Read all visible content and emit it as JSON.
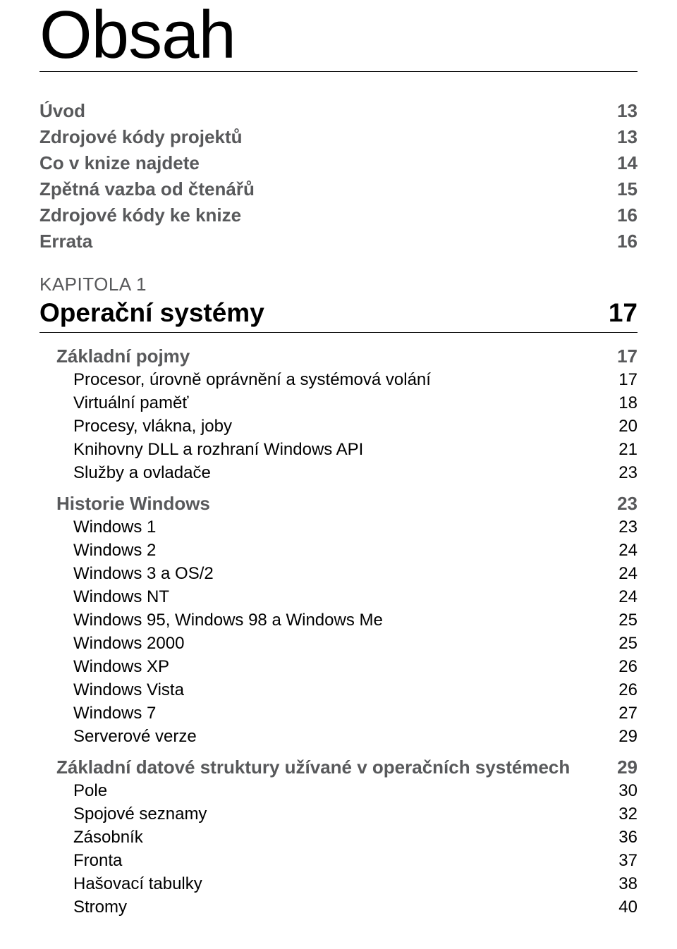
{
  "title": "Obsah",
  "intro": [
    {
      "label": "Úvod",
      "page": "13"
    },
    {
      "label": "Zdrojové kódy projektů",
      "page": "13"
    },
    {
      "label": "Co v knize najdete",
      "page": "14"
    },
    {
      "label": "Zpětná vazba od čtenářů",
      "page": "15"
    },
    {
      "label": "Zdrojové kódy ke knize",
      "page": "16"
    },
    {
      "label": "Errata",
      "page": "16"
    }
  ],
  "chapter": {
    "kapitola_label": "KAPITOLA 1",
    "title": "Operační systémy",
    "page": "17",
    "sections": [
      {
        "label": "Základní pojmy",
        "page": "17",
        "items": [
          {
            "label": "Procesor, úrovně oprávnění a systémová volání",
            "page": "17"
          },
          {
            "label": "Virtuální paměť",
            "page": "18"
          },
          {
            "label": "Procesy, vlákna, joby",
            "page": "20"
          },
          {
            "label": "Knihovny DLL a rozhraní Windows API",
            "page": "21"
          },
          {
            "label": "Služby a ovladače",
            "page": "23"
          }
        ]
      },
      {
        "label": "Historie Windows",
        "page": "23",
        "items": [
          {
            "label": "Windows 1",
            "page": "23"
          },
          {
            "label": "Windows 2",
            "page": "24"
          },
          {
            "label": "Windows 3 a OS/2",
            "page": "24"
          },
          {
            "label": "Windows NT",
            "page": "24"
          },
          {
            "label": "Windows 95, Windows 98 a Windows Me",
            "page": "25"
          },
          {
            "label": "Windows 2000",
            "page": "25"
          },
          {
            "label": "Windows XP",
            "page": "26"
          },
          {
            "label": "Windows Vista",
            "page": "26"
          },
          {
            "label": "Windows 7",
            "page": "27"
          },
          {
            "label": "Serverové verze",
            "page": "29"
          }
        ]
      },
      {
        "label": "Základní datové struktury užívané v operačních systémech",
        "page": "29",
        "items": [
          {
            "label": "Pole",
            "page": "30"
          },
          {
            "label": "Spojové seznamy",
            "page": "32"
          },
          {
            "label": "Zásobník",
            "page": "36"
          },
          {
            "label": "Fronta",
            "page": "37"
          },
          {
            "label": "Hašovací tabulky",
            "page": "38"
          },
          {
            "label": "Stromy",
            "page": "40"
          }
        ]
      }
    ]
  }
}
